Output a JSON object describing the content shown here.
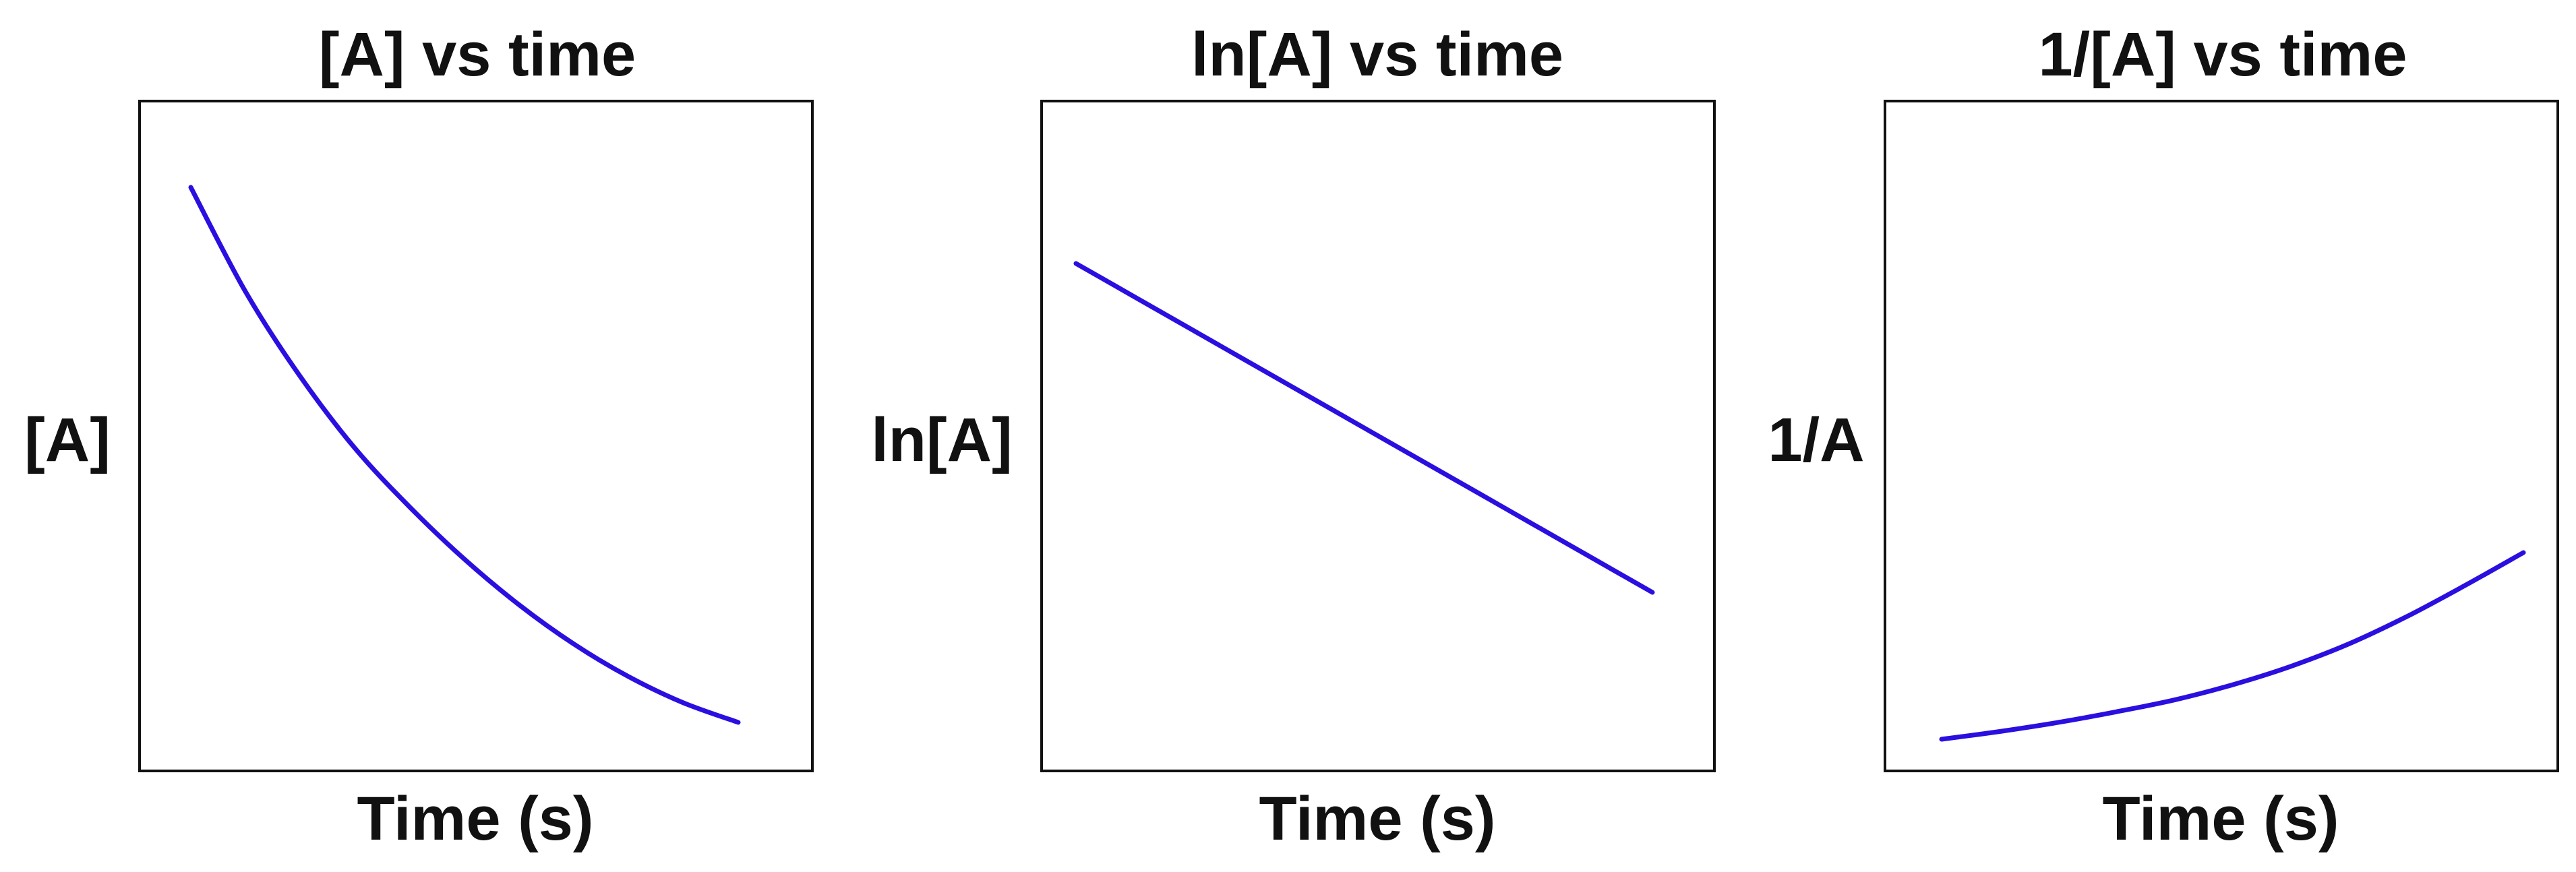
{
  "chart_data": [
    {
      "type": "line",
      "title": "[A] vs time",
      "xlabel": "Time (s)",
      "ylabel": "[A]",
      "grid": false,
      "x": [
        0,
        1,
        2,
        3,
        4,
        5,
        6,
        7,
        8,
        9,
        10
      ],
      "series": [
        {
          "values": [
            1.0,
            0.84,
            0.71,
            0.6,
            0.51,
            0.43,
            0.36,
            0.3,
            0.25,
            0.21,
            0.18
          ]
        }
      ]
    },
    {
      "type": "line",
      "title": "ln[A] vs time",
      "xlabel": "Time (s)",
      "ylabel": "ln[A]",
      "grid": false,
      "x": [
        0,
        1,
        2,
        3,
        4,
        5,
        6,
        7,
        8,
        9,
        10
      ],
      "series": [
        {
          "values": [
            0.0,
            -0.17,
            -0.34,
            -0.51,
            -0.68,
            -0.85,
            -1.02,
            -1.19,
            -1.36,
            -1.53,
            -1.7
          ]
        }
      ]
    },
    {
      "type": "line",
      "title": "1/[A] vs time",
      "xlabel": "Time (s)",
      "ylabel": "1/A",
      "grid": false,
      "x": [
        0,
        1,
        2,
        3,
        4,
        5,
        6,
        7,
        8,
        9,
        10
      ],
      "series": [
        {
          "values": [
            1.0,
            1.19,
            1.41,
            1.67,
            1.96,
            2.33,
            2.78,
            3.33,
            4.0,
            4.76,
            5.56
          ]
        }
      ]
    }
  ],
  "colors": {
    "line": "#2a0fe0",
    "frame": "#111111",
    "background": "#ffffff"
  }
}
